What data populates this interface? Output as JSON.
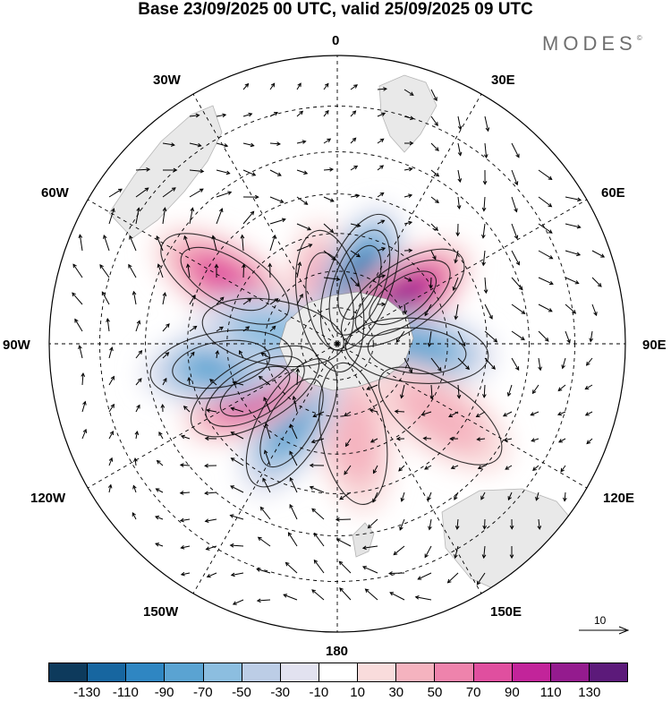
{
  "title": "Base 23/09/2025 00 UTC, valid 25/09/2025 09 UTC",
  "brand": {
    "name": "MODES",
    "mark": "©"
  },
  "longitude_labels": {
    "n0": "0",
    "n30e": "30E",
    "n60e": "60E",
    "n90e": "90E",
    "n120e": "120E",
    "n150e": "150E",
    "n180": "180",
    "n150w": "150W",
    "n120w": "120W",
    "n90w": "90W",
    "n60w": "60W",
    "n30w": "30W"
  },
  "reference_vector": {
    "value": "10"
  },
  "colorbar": {
    "colors": [
      "#0d3a5c",
      "#1766a0",
      "#2f86c2",
      "#5aa3d2",
      "#8cbee0",
      "#bccde6",
      "#e2e2f0",
      "#ffffff",
      "#f9dcdc",
      "#f5b3bf",
      "#ee83ac",
      "#e04f9f",
      "#c2249a",
      "#941b8e",
      "#5c1a7a"
    ],
    "ticks": [
      "-130",
      "-110",
      "-90",
      "-70",
      "-50",
      "-30",
      "-10",
      "10",
      "30",
      "50",
      "70",
      "90",
      "110",
      "130"
    ]
  },
  "map": {
    "projection": "south-polar-stereographic",
    "anomaly_centers": [
      {
        "lon": -60,
        "colat_deg": 35,
        "value": 80
      },
      {
        "lon": -10,
        "colat_deg": 12,
        "value": 60
      },
      {
        "lon": 20,
        "colat_deg": 18,
        "value": -110
      },
      {
        "lon": 55,
        "colat_deg": 22,
        "value": 120
      },
      {
        "lon": 95,
        "colat_deg": 22,
        "value": -80
      },
      {
        "lon": 125,
        "colat_deg": 34,
        "value": 30
      },
      {
        "lon": 170,
        "colat_deg": 25,
        "value": 40
      },
      {
        "lon": -150,
        "colat_deg": 25,
        "value": -70
      },
      {
        "lon": -120,
        "colat_deg": 26,
        "value": 90
      },
      {
        "lon": -100,
        "colat_deg": 32,
        "value": -70
      },
      {
        "lon": -80,
        "colat_deg": 18,
        "value": -50
      }
    ]
  }
}
